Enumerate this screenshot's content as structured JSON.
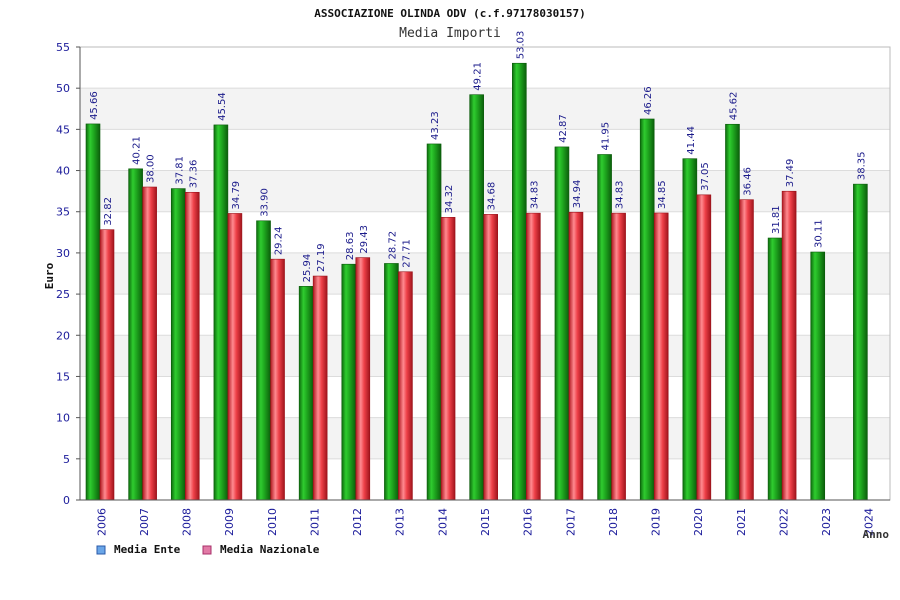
{
  "chart_data": {
    "type": "bar",
    "title": "ASSOCIAZIONE OLINDA ODV (c.f.97178030157)",
    "subtitle": "Media Importi",
    "xlabel": "Anno",
    "ylabel": "Euro",
    "ylim": [
      0,
      55
    ],
    "yticks": [
      0,
      5,
      10,
      15,
      20,
      25,
      30,
      35,
      40,
      45,
      50,
      55
    ],
    "grid": true,
    "legend_position": "bottom-left",
    "categories": [
      "2006",
      "2007",
      "2008",
      "2009",
      "2010",
      "2011",
      "2012",
      "2013",
      "2014",
      "2015",
      "2016",
      "2017",
      "2018",
      "2019",
      "2020",
      "2021",
      "2022",
      "2023",
      "2024"
    ],
    "series": [
      {
        "name": "Media Ente",
        "color": "#22aa22",
        "legend_color": "#6aa6e8",
        "values": [
          45.66,
          40.21,
          37.81,
          45.54,
          33.9,
          25.94,
          28.63,
          28.72,
          43.23,
          49.21,
          53.03,
          42.87,
          41.95,
          46.26,
          41.44,
          45.62,
          31.81,
          30.11,
          38.35
        ],
        "labels": [
          "45.66",
          "40.21",
          "37.81",
          "45.54",
          "33.90",
          "25.94",
          "28.63",
          "28.72",
          "43.23",
          "49.21",
          "53.03",
          "42.87",
          "41.95",
          "46.26",
          "41.44",
          "45.62",
          "31.81",
          "30.11",
          "38.35"
        ]
      },
      {
        "name": "Media Nazionale",
        "color": "#e8323c",
        "legend_color": "#e27aa6",
        "values": [
          32.82,
          38.0,
          37.36,
          34.79,
          29.24,
          27.19,
          29.43,
          27.71,
          34.32,
          34.68,
          34.83,
          34.94,
          34.83,
          34.85,
          37.05,
          36.46,
          37.49,
          null,
          null
        ],
        "labels": [
          "32.82",
          "38.00",
          "37.36",
          "34.79",
          "29.24",
          "27.19",
          "29.43",
          "27.71",
          "34.32",
          "34.68",
          "34.83",
          "34.94",
          "34.83",
          "34.85",
          "37.05",
          "36.46",
          "37.49",
          "",
          ""
        ]
      }
    ]
  }
}
